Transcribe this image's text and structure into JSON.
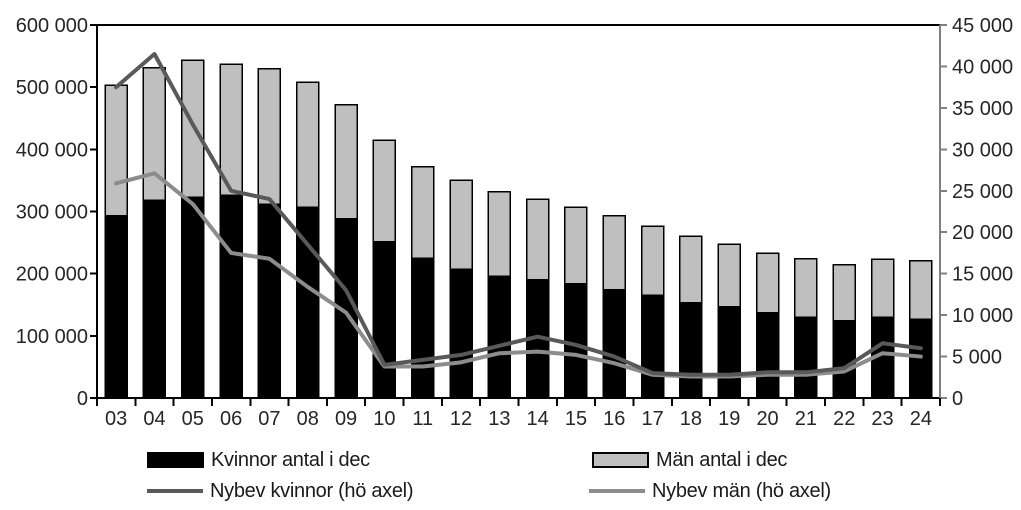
{
  "chart_data": {
    "type": "combo",
    "categories": [
      "03",
      "04",
      "05",
      "06",
      "07",
      "08",
      "09",
      "10",
      "11",
      "12",
      "13",
      "14",
      "15",
      "16",
      "17",
      "18",
      "19",
      "20",
      "21",
      "22",
      "23",
      "24"
    ],
    "series": [
      {
        "name": "Kvinnor antal i dec",
        "type": "bar",
        "stack": "antal",
        "axis": "left",
        "color": "#000000",
        "values": [
          293000,
          318000,
          323000,
          326000,
          312000,
          307000,
          288000,
          251000,
          225000,
          207000,
          196000,
          190000,
          184000,
          174000,
          165000,
          153000,
          147000,
          137000,
          130000,
          124000,
          130000,
          127000
        ]
      },
      {
        "name": "Män antal i dec",
        "type": "bar",
        "stack": "antal",
        "axis": "left",
        "color": "#bfbfbf",
        "values": [
          210000,
          213000,
          220000,
          211000,
          218000,
          201000,
          184000,
          164000,
          147000,
          143000,
          136000,
          130000,
          123000,
          119000,
          111000,
          107000,
          100000,
          96000,
          94000,
          90000,
          93000,
          94000
        ]
      },
      {
        "name": "Nybev kvinnor (hö axel)",
        "type": "line",
        "axis": "right",
        "color": "#595959",
        "values": [
          37500,
          41500,
          33000,
          25000,
          24000,
          18500,
          13000,
          4000,
          4600,
          5200,
          6300,
          7400,
          6400,
          5000,
          3000,
          2800,
          2800,
          3100,
          3100,
          3600,
          6600,
          6000
        ]
      },
      {
        "name": "Nybev män (hö axel)",
        "type": "line",
        "axis": "right",
        "color": "#8c8c8c",
        "values": [
          25900,
          27100,
          23400,
          17500,
          16800,
          13400,
          10300,
          3800,
          3800,
          4300,
          5400,
          5600,
          5200,
          4200,
          2800,
          2600,
          2600,
          2800,
          2800,
          3200,
          5400,
          5000
        ]
      }
    ],
    "left_axis": {
      "min": 0,
      "max": 600000,
      "step": 100000,
      "tick_labels": [
        "0",
        "100 000",
        "200 000",
        "300 000",
        "400 000",
        "500 000",
        "600 000"
      ]
    },
    "right_axis": {
      "min": 0,
      "max": 45000,
      "step": 5000,
      "tick_labels": [
        "0",
        "5 000",
        "10 000",
        "15 000",
        "20 000",
        "25 000",
        "30 000",
        "35 000",
        "40 000",
        "45 000"
      ]
    },
    "legend": {
      "position": "bottom",
      "columns": 2
    },
    "grid": false,
    "axis_color": "#000000",
    "right_axis_line_color": "#808080",
    "text_color": "#262626"
  }
}
